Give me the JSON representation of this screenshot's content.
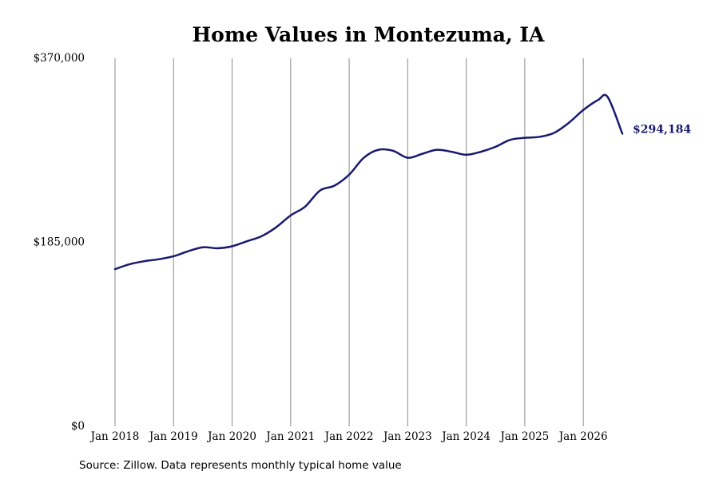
{
  "chart_data": {
    "type": "line",
    "title": "Home Values in Montezuma, IA",
    "xlabel": "",
    "ylabel": "",
    "ylim": [
      0,
      370000
    ],
    "yticks": [
      0,
      185000,
      370000
    ],
    "ytick_labels": [
      "$0",
      "$185,000",
      "$370,000"
    ],
    "xticks": [
      "2018-01",
      "2019-01",
      "2020-01",
      "2021-01",
      "2022-01",
      "2023-01",
      "2024-01",
      "2025-01",
      "2026-01"
    ],
    "xtick_labels": [
      "Jan 2018",
      "Jan 2019",
      "Jan 2020",
      "Jan 2021",
      "Jan 2022",
      "Jan 2023",
      "Jan 2024",
      "Jan 2025",
      "Jan 2026"
    ],
    "x_range": [
      "2018-01",
      "2026-09"
    ],
    "grid": "vertical",
    "line_color": "#191970",
    "end_label": "$294,184",
    "series": [
      {
        "x": [
          "2018-01",
          "2018-04",
          "2018-07",
          "2018-10",
          "2019-01",
          "2019-04",
          "2019-07",
          "2019-10",
          "2020-01",
          "2020-04",
          "2020-07",
          "2020-10",
          "2021-01",
          "2021-04",
          "2021-07",
          "2021-10",
          "2022-01",
          "2022-04",
          "2022-07",
          "2022-10",
          "2023-01",
          "2023-04",
          "2023-07",
          "2023-10",
          "2024-01",
          "2024-04",
          "2024-07",
          "2024-10",
          "2025-01",
          "2025-04",
          "2025-07",
          "2025-10",
          "2026-01",
          "2026-04",
          "2026-06",
          "2026-09"
        ],
        "values": [
          158000,
          163000,
          166000,
          168000,
          171000,
          176000,
          180000,
          179000,
          181000,
          186000,
          191000,
          200000,
          212000,
          221000,
          237000,
          242000,
          253000,
          270000,
          278000,
          277000,
          270000,
          274000,
          278000,
          276000,
          273000,
          276000,
          281000,
          288000,
          290000,
          291000,
          295000,
          305000,
          318000,
          328000,
          331000,
          294184
        ]
      }
    ]
  },
  "source_note": "Source: Zillow. Data represents monthly typical home value"
}
